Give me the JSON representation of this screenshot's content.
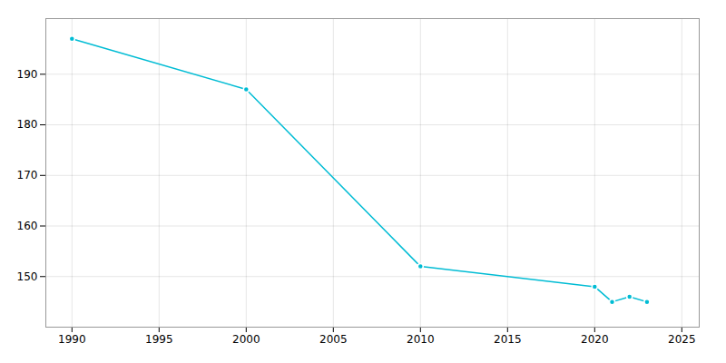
{
  "chart_data": {
    "type": "line",
    "x": [
      1990,
      2000,
      2010,
      2020,
      2021,
      2022,
      2023
    ],
    "values": [
      197,
      187,
      152,
      148,
      145,
      146,
      145
    ],
    "color": "#00BCD4",
    "marker": "circle",
    "xlim": [
      1988.5,
      2026
    ],
    "ylim": [
      140,
      201
    ],
    "xticks": [
      1990,
      1995,
      2000,
      2005,
      2010,
      2015,
      2020,
      2025
    ],
    "yticks": [
      150,
      160,
      170,
      180,
      190
    ],
    "grid": true
  }
}
